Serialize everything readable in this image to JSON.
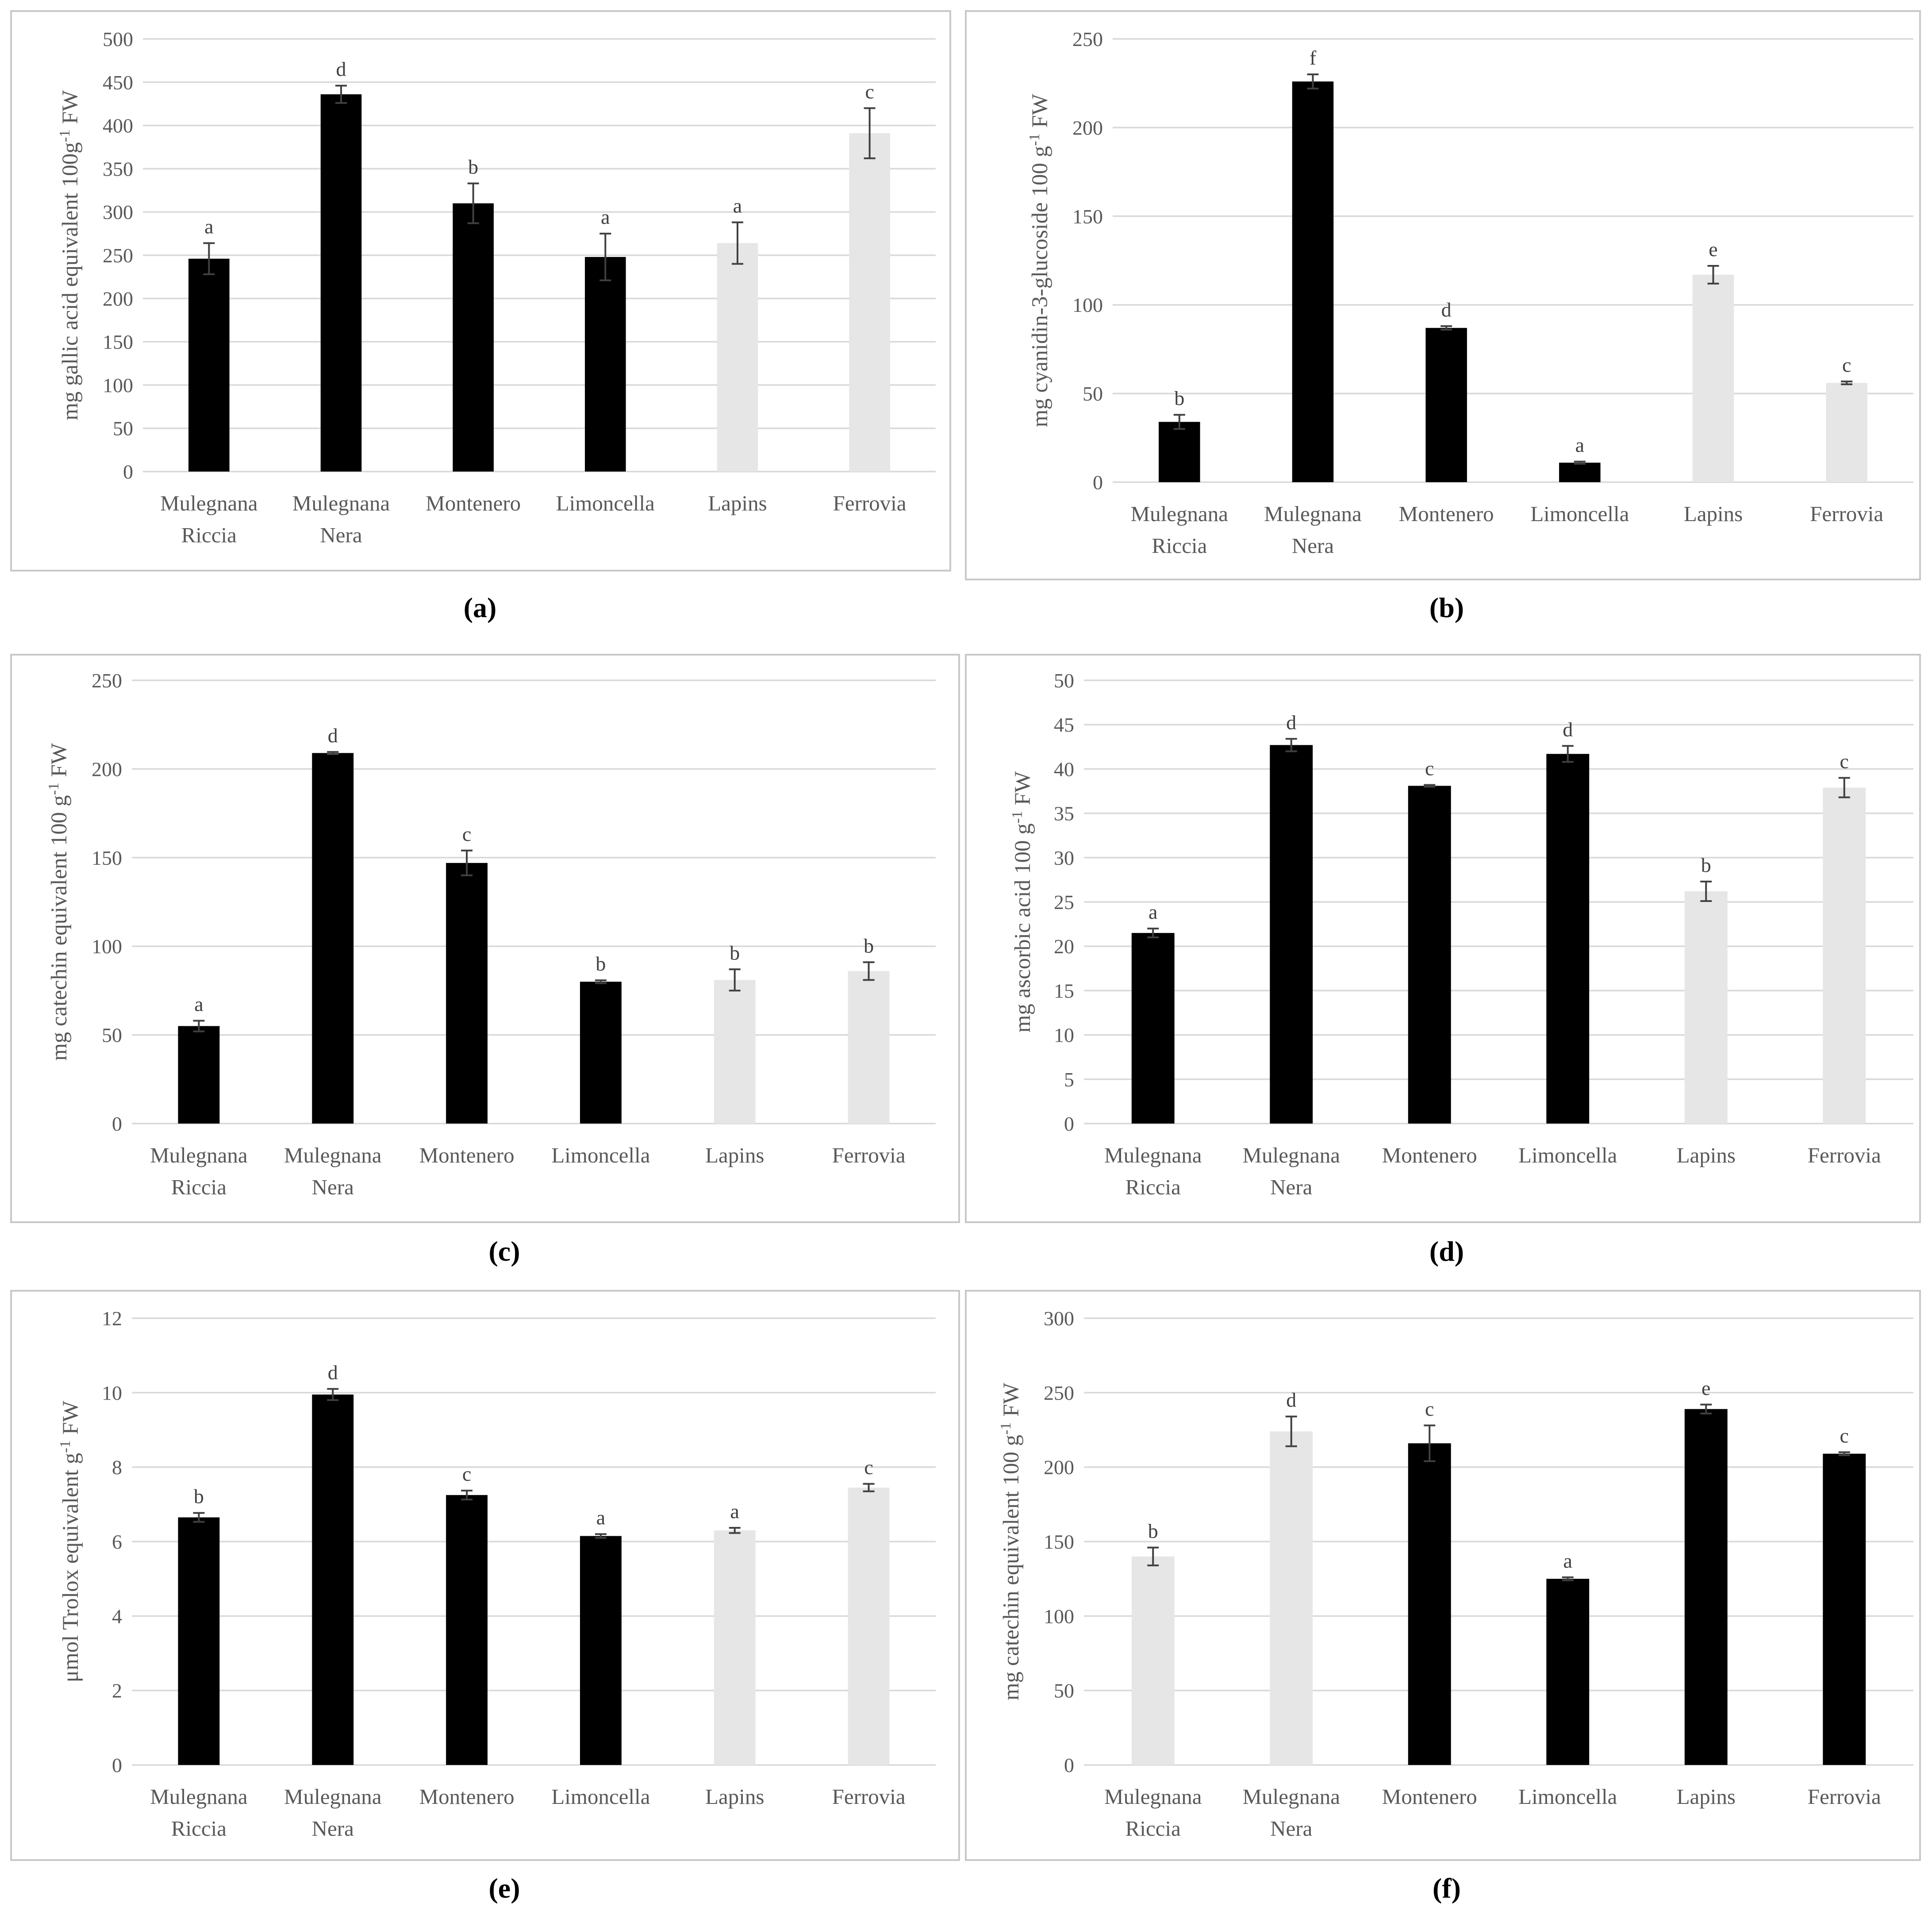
{
  "colors": {
    "dark": "#000000",
    "light": "#e6e6e6"
  },
  "chart_data": [
    {
      "type": "bar",
      "panel_label": "(a)",
      "ylabel_main": "mg gallic acid equivalent 100g",
      "ylabel_sup": "-1",
      "ylabel_tail": " FW",
      "ylim": [
        0,
        500
      ],
      "yticks": [
        0,
        50,
        100,
        150,
        200,
        250,
        300,
        350,
        400,
        450,
        500
      ],
      "categories": [
        "Mulegnana Riccia",
        "Mulegnana Nera",
        "Montenero",
        "Limoncella",
        "Lapins",
        "Ferrovia"
      ],
      "category_lines": [
        [
          "Mulegnana",
          "Riccia"
        ],
        [
          "Mulegnana",
          "Nera"
        ],
        [
          "Montenero"
        ],
        [
          "Limoncella"
        ],
        [
          "Lapins"
        ],
        [
          "Ferrovia"
        ]
      ],
      "values": [
        246,
        436,
        310,
        248,
        264,
        391
      ],
      "errors": [
        18,
        10,
        23,
        27,
        24,
        29
      ],
      "letters": [
        "a",
        "d",
        "b",
        "a",
        "a",
        "c"
      ],
      "bar_colors": [
        "dark",
        "dark",
        "dark",
        "dark",
        "light",
        "light"
      ]
    },
    {
      "type": "bar",
      "panel_label": "(b)",
      "ylabel_main": "mg cyanidin-3-glucoside 100 g",
      "ylabel_sup": "-1",
      "ylabel_tail": " FW",
      "ylim": [
        0,
        250
      ],
      "yticks": [
        0,
        50,
        100,
        150,
        200,
        250
      ],
      "categories": [
        "Mulegnana Riccia",
        "Mulegnana Nera",
        "Montenero",
        "Limoncella",
        "Lapins",
        "Ferrovia"
      ],
      "category_lines": [
        [
          "Mulegnana",
          "Riccia"
        ],
        [
          "Mulegnana",
          "Nera"
        ],
        [
          "Montenero"
        ],
        [
          "Limoncella"
        ],
        [
          "Lapins"
        ],
        [
          "Ferrovia"
        ]
      ],
      "values": [
        34,
        226,
        87,
        11,
        117,
        56
      ],
      "errors": [
        4,
        4,
        1,
        0.6,
        5,
        0.8
      ],
      "letters": [
        "b",
        "f",
        "d",
        "a",
        "e",
        "c"
      ],
      "bar_colors": [
        "dark",
        "dark",
        "dark",
        "dark",
        "light",
        "light"
      ]
    },
    {
      "type": "bar",
      "panel_label": "(c)",
      "ylabel_main": "mg catechin equivalent 100 g",
      "ylabel_sup": "-1",
      "ylabel_tail": " FW",
      "ylim": [
        0,
        250
      ],
      "yticks": [
        0,
        50,
        100,
        150,
        200,
        250
      ],
      "categories": [
        "Mulegnana Riccia",
        "Mulegnana Nera",
        "Montenero",
        "Limoncella",
        "Lapins",
        "Ferrovia"
      ],
      "category_lines": [
        [
          "Mulegnana",
          "Riccia"
        ],
        [
          "Mulegnana",
          "Nera"
        ],
        [
          "Montenero"
        ],
        [
          "Limoncella"
        ],
        [
          "Lapins"
        ],
        [
          "Ferrovia"
        ]
      ],
      "values": [
        55,
        209,
        147,
        80,
        81,
        86
      ],
      "errors": [
        3,
        0.6,
        7,
        0.8,
        6,
        5
      ],
      "letters": [
        "a",
        "d",
        "c",
        "b",
        "b",
        "b"
      ],
      "bar_colors": [
        "dark",
        "dark",
        "dark",
        "dark",
        "light",
        "light"
      ]
    },
    {
      "type": "bar",
      "panel_label": "(d)",
      "ylabel_main": "mg ascorbic acid 100 g",
      "ylabel_sup": "-1",
      "ylabel_tail": " FW",
      "ylim": [
        0,
        50
      ],
      "yticks": [
        0,
        5,
        10,
        15,
        20,
        25,
        30,
        35,
        40,
        45,
        50
      ],
      "categories": [
        "Mulegnana Riccia",
        "Mulegnana Nera",
        "Montenero",
        "Limoncella",
        "Lapins",
        "Ferrovia"
      ],
      "category_lines": [
        [
          "Mulegnana",
          "Riccia"
        ],
        [
          "Mulegnana",
          "Nera"
        ],
        [
          "Montenero"
        ],
        [
          "Limoncella"
        ],
        [
          "Lapins"
        ],
        [
          "Ferrovia"
        ]
      ],
      "values": [
        21.5,
        42.7,
        38.1,
        41.7,
        26.2,
        37.9
      ],
      "errors": [
        0.5,
        0.7,
        0.1,
        0.9,
        1.1,
        1.1
      ],
      "letters": [
        "a",
        "d",
        "c",
        "d",
        "b",
        "c"
      ],
      "bar_colors": [
        "dark",
        "dark",
        "dark",
        "dark",
        "light",
        "light"
      ]
    },
    {
      "type": "bar",
      "panel_label": "(e)",
      "ylabel_main": "μmol Trolox equivalent g",
      "ylabel_sup": "-1",
      "ylabel_tail": " FW",
      "ylim": [
        0,
        12
      ],
      "yticks": [
        0,
        2,
        4,
        6,
        8,
        10,
        12
      ],
      "categories": [
        "Mulegnana Riccia",
        "Mulegnana Nera",
        "Montenero",
        "Limoncella",
        "Lapins",
        "Ferrovia"
      ],
      "category_lines": [
        [
          "Mulegnana",
          "Riccia"
        ],
        [
          "Mulegnana",
          "Nera"
        ],
        [
          "Montenero"
        ],
        [
          "Limoncella"
        ],
        [
          "Lapins"
        ],
        [
          "Ferrovia"
        ]
      ],
      "values": [
        6.65,
        9.95,
        7.25,
        6.15,
        6.3,
        7.45
      ],
      "errors": [
        0.12,
        0.15,
        0.12,
        0.05,
        0.07,
        0.1
      ],
      "letters": [
        "b",
        "d",
        "c",
        "a",
        "a",
        "c"
      ],
      "bar_colors": [
        "dark",
        "dark",
        "dark",
        "dark",
        "light",
        "light"
      ]
    },
    {
      "type": "bar",
      "panel_label": "(f)",
      "ylabel_main": "mg catechin equivalent 100 g",
      "ylabel_sup": "-1",
      "ylabel_tail": " FW",
      "ylim": [
        0,
        300
      ],
      "yticks": [
        0,
        50,
        100,
        150,
        200,
        250,
        300
      ],
      "categories": [
        "Mulegnana Riccia",
        "Mulegnana Nera",
        "Montenero",
        "Limoncella",
        "Lapins",
        "Ferrovia"
      ],
      "category_lines": [
        [
          "Mulegnana",
          "Riccia"
        ],
        [
          "Mulegnana",
          "Nera"
        ],
        [
          "Montenero"
        ],
        [
          "Limoncella"
        ],
        [
          "Lapins"
        ],
        [
          "Ferrovia"
        ]
      ],
      "values": [
        140,
        224,
        216,
        125,
        239,
        209
      ],
      "errors": [
        6,
        10,
        12,
        1,
        3,
        1
      ],
      "letters": [
        "b",
        "d",
        "c",
        "a",
        "e",
        "c"
      ],
      "bar_colors": [
        "light",
        "light",
        "dark",
        "dark",
        "dark",
        "dark"
      ]
    }
  ]
}
